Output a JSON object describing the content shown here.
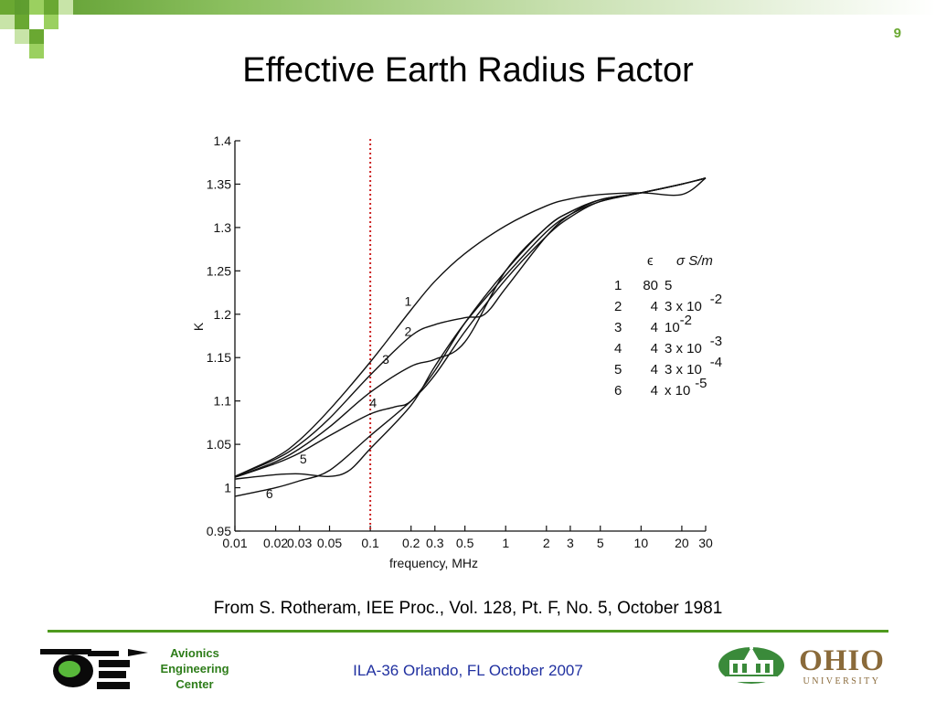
{
  "slide": {
    "number": "9",
    "title": "Effective Earth Radius Factor",
    "citation": "From S. Rotheram, IEE Proc., Vol. 128, Pt. F, No. 5, October 1981",
    "footer_center": "ILA-36  Orlando, FL  October 2007",
    "left_logo_text": [
      "Avionics",
      "Engineering",
      "Center"
    ],
    "right_logo_text": {
      "main": "OHIO",
      "sub": "UNIVERSITY"
    },
    "accent_color": "#4e9a1e",
    "footer_text_color": "#2030a0"
  },
  "chart_data": {
    "type": "line",
    "title": "",
    "xlabel": "frequency, MHz",
    "ylabel": "K",
    "xscale": "log",
    "xlim": [
      0.01,
      30
    ],
    "ylim": [
      0.95,
      1.4
    ],
    "xticks": [
      0.01,
      0.02,
      0.03,
      0.05,
      0.1,
      0.2,
      0.3,
      0.5,
      1,
      2,
      3,
      5,
      10,
      20,
      30
    ],
    "xtick_labels": [
      "0.01",
      "0.02",
      "0.03",
      "0.05",
      "0.1",
      "0.2",
      "0.3",
      "0.5",
      "1",
      "2",
      "3",
      "5",
      "10",
      "20",
      "30"
    ],
    "yticks": [
      0.95,
      1,
      1.05,
      1.1,
      1.15,
      1.2,
      1.25,
      1.3,
      1.35,
      1.4
    ],
    "ytick_labels": [
      "0.95",
      "1",
      "1.05",
      "1.1",
      "1.15",
      "1.2",
      "1.25",
      "1.3",
      "1.35",
      "1.4"
    ],
    "reference_line": {
      "x": 0.1,
      "color": "#cc2222",
      "style": "dotted"
    },
    "legend": {
      "headers": [
        "ϵ",
        "σ S/m"
      ],
      "rows": [
        {
          "n": "1",
          "eps": "80",
          "sigma": "5"
        },
        {
          "n": "2",
          "eps": "4",
          "sigma": "3 x 10",
          "exp": "-2"
        },
        {
          "n": "3",
          "eps": "4",
          "sigma": "10",
          "exp": "-2"
        },
        {
          "n": "4",
          "eps": "4",
          "sigma": "3 x 10",
          "exp": "-3"
        },
        {
          "n": "5",
          "eps": "4",
          "sigma": "3 x 10",
          "exp": "-4"
        },
        {
          "n": "6",
          "eps": "4",
          "sigma": "x 10",
          "exp": "-5"
        }
      ]
    },
    "series": [
      {
        "name": "1",
        "x": [
          0.01,
          0.02,
          0.03,
          0.05,
          0.1,
          0.2,
          0.3,
          0.5,
          1,
          2,
          3,
          5,
          10,
          20,
          30
        ],
        "y": [
          1.013,
          1.035,
          1.055,
          1.09,
          1.145,
          1.205,
          1.238,
          1.27,
          1.302,
          1.325,
          1.333,
          1.338,
          1.34,
          1.338,
          1.357
        ]
      },
      {
        "name": "2",
        "x": [
          0.01,
          0.02,
          0.03,
          0.05,
          0.1,
          0.2,
          0.3,
          0.5,
          0.7,
          1,
          2,
          3,
          5,
          10,
          20,
          30
        ],
        "y": [
          1.013,
          1.033,
          1.05,
          1.08,
          1.13,
          1.175,
          1.188,
          1.196,
          1.2,
          1.23,
          1.29,
          1.315,
          1.332,
          1.34,
          1.35,
          1.357
        ]
      },
      {
        "name": "3",
        "x": [
          0.01,
          0.02,
          0.03,
          0.05,
          0.1,
          0.2,
          0.3,
          0.5,
          1,
          2,
          3,
          5,
          10,
          20,
          30
        ],
        "y": [
          1.012,
          1.03,
          1.045,
          1.07,
          1.11,
          1.14,
          1.148,
          1.168,
          1.25,
          1.3,
          1.318,
          1.332,
          1.34,
          1.35,
          1.357
        ]
      },
      {
        "name": "4",
        "x": [
          0.01,
          0.02,
          0.03,
          0.05,
          0.1,
          0.15,
          0.2,
          0.3,
          0.5,
          1,
          2,
          3,
          5,
          10,
          20,
          30
        ],
        "y": [
          1.012,
          1.028,
          1.04,
          1.06,
          1.085,
          1.093,
          1.1,
          1.135,
          1.19,
          1.25,
          1.3,
          1.318,
          1.332,
          1.34,
          1.35,
          1.357
        ]
      },
      {
        "name": "5",
        "x": [
          0.01,
          0.02,
          0.03,
          0.05,
          0.07,
          0.1,
          0.2,
          0.3,
          0.5,
          1,
          2,
          3,
          5,
          10,
          20,
          30
        ],
        "y": [
          1.01,
          1.015,
          1.016,
          1.013,
          1.02,
          1.045,
          1.095,
          1.14,
          1.19,
          1.245,
          1.295,
          1.315,
          1.33,
          1.34,
          1.35,
          1.357
        ]
      },
      {
        "name": "6",
        "x": [
          0.01,
          0.02,
          0.03,
          0.05,
          0.1,
          0.2,
          0.3,
          0.5,
          1,
          2,
          3,
          5,
          10,
          20,
          30
        ],
        "y": [
          0.99,
          1.0,
          1.008,
          1.02,
          1.06,
          1.1,
          1.13,
          1.18,
          1.24,
          1.29,
          1.312,
          1.33,
          1.34,
          1.35,
          1.357
        ]
      }
    ],
    "curve_labels": [
      {
        "text": "1",
        "x": 0.19,
        "y": 1.21
      },
      {
        "text": "2",
        "x": 0.19,
        "y": 1.175
      },
      {
        "text": "3",
        "x": 0.13,
        "y": 1.143
      },
      {
        "text": "4",
        "x": 0.105,
        "y": 1.093
      },
      {
        "text": "5",
        "x": 0.032,
        "y": 1.028
      },
      {
        "text": "6",
        "x": 0.018,
        "y": 0.988
      }
    ],
    "legend_position": "right",
    "grid": false
  }
}
